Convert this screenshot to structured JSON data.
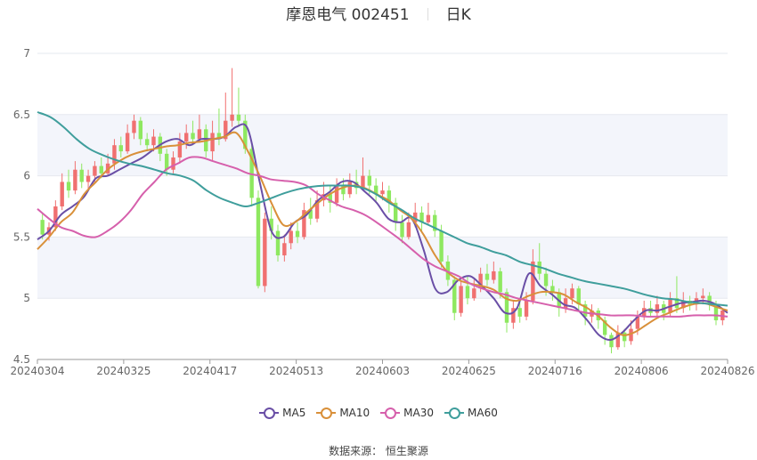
{
  "header": {
    "title": "摩恩电气 002451",
    "period": "日K"
  },
  "source": "数据来源：  恒生聚源",
  "colors": {
    "up": "#f07070",
    "down": "#8ee860",
    "MA5": "#6a4fa6",
    "MA10": "#d9903a",
    "MA30": "#d660ac",
    "MA60": "#3f9e9c",
    "band": "#f3f5fb"
  },
  "chart_data": {
    "type": "candlestick",
    "ylim": [
      4.5,
      7
    ],
    "yticks": [
      "7",
      "6.5",
      "6",
      "5.5",
      "5",
      "4.5"
    ],
    "xticks": [
      "20240304",
      "20240325",
      "20240417",
      "20240513",
      "20240603",
      "20240625",
      "20240716",
      "20240806",
      "20240826"
    ],
    "legend": [
      "MA5",
      "MA10",
      "MA30",
      "MA60"
    ],
    "legend_position": "bottom",
    "candles": [
      [
        5.64,
        5.52,
        5.7,
        5.48
      ],
      [
        5.52,
        5.58,
        5.62,
        5.47
      ],
      [
        5.58,
        5.75,
        5.8,
        5.55
      ],
      [
        5.75,
        5.95,
        6.02,
        5.72
      ],
      [
        5.95,
        5.88,
        6.05,
        5.82
      ],
      [
        5.88,
        6.05,
        6.12,
        5.85
      ],
      [
        6.05,
        5.95,
        6.1,
        5.9
      ],
      [
        5.95,
        6.0,
        6.05,
        5.88
      ],
      [
        6.0,
        6.08,
        6.12,
        5.95
      ],
      [
        6.08,
        6.02,
        6.15,
        5.98
      ],
      [
        6.02,
        6.1,
        6.18,
        6.0
      ],
      [
        6.1,
        6.25,
        6.3,
        6.05
      ],
      [
        6.25,
        6.2,
        6.32,
        6.15
      ],
      [
        6.2,
        6.35,
        6.42,
        6.18
      ],
      [
        6.35,
        6.45,
        6.5,
        6.3
      ],
      [
        6.45,
        6.3,
        6.48,
        6.25
      ],
      [
        6.3,
        6.25,
        6.35,
        6.2
      ],
      [
        6.25,
        6.32,
        6.38,
        6.2
      ],
      [
        6.32,
        6.18,
        6.35,
        6.12
      ],
      [
        6.18,
        6.05,
        6.22,
        6.0
      ],
      [
        6.05,
        6.15,
        6.2,
        6.02
      ],
      [
        6.15,
        6.28,
        6.35,
        6.1
      ],
      [
        6.28,
        6.35,
        6.42,
        6.22
      ],
      [
        6.35,
        6.3,
        6.45,
        6.25
      ],
      [
        6.3,
        6.38,
        6.5,
        6.28
      ],
      [
        6.38,
        6.2,
        6.42,
        6.15
      ],
      [
        6.2,
        6.35,
        6.45,
        6.12
      ],
      [
        6.35,
        6.3,
        6.55,
        6.25
      ],
      [
        6.3,
        6.45,
        6.68,
        6.28
      ],
      [
        6.45,
        6.5,
        6.88,
        6.4
      ],
      [
        6.5,
        6.45,
        6.72,
        6.4
      ],
      [
        6.45,
        6.22,
        6.5,
        6.18
      ],
      [
        6.22,
        5.82,
        6.25,
        5.75
      ],
      [
        5.82,
        5.1,
        5.88,
        5.08
      ],
      [
        5.1,
        5.65,
        5.7,
        5.05
      ],
      [
        5.65,
        5.55,
        5.75,
        5.48
      ],
      [
        5.55,
        5.35,
        5.6,
        5.3
      ],
      [
        5.35,
        5.45,
        5.52,
        5.3
      ],
      [
        5.45,
        5.55,
        5.62,
        5.4
      ],
      [
        5.55,
        5.5,
        5.62,
        5.45
      ],
      [
        5.5,
        5.72,
        5.78,
        5.48
      ],
      [
        5.72,
        5.65,
        5.82,
        5.6
      ],
      [
        5.65,
        5.8,
        5.88,
        5.62
      ],
      [
        5.8,
        5.85,
        5.95,
        5.75
      ],
      [
        5.85,
        5.78,
        5.92,
        5.7
      ],
      [
        5.78,
        5.92,
        5.98,
        5.75
      ],
      [
        5.92,
        5.85,
        5.98,
        5.8
      ],
      [
        5.85,
        5.95,
        6.02,
        5.82
      ],
      [
        5.95,
        5.9,
        6.05,
        5.85
      ],
      [
        5.9,
        6.0,
        6.15,
        5.88
      ],
      [
        6.0,
        5.92,
        6.05,
        5.85
      ],
      [
        5.92,
        5.85,
        5.98,
        5.78
      ],
      [
        5.85,
        5.88,
        5.95,
        5.8
      ],
      [
        5.88,
        5.78,
        5.92,
        5.7
      ],
      [
        5.78,
        5.62,
        5.82,
        5.55
      ],
      [
        5.62,
        5.5,
        5.68,
        5.45
      ],
      [
        5.5,
        5.62,
        5.7,
        5.48
      ],
      [
        5.62,
        5.7,
        5.78,
        5.58
      ],
      [
        5.7,
        5.62,
        5.75,
        5.55
      ],
      [
        5.62,
        5.68,
        5.78,
        5.6
      ],
      [
        5.68,
        5.55,
        5.72,
        5.5
      ],
      [
        5.55,
        5.3,
        5.6,
        5.25
      ],
      [
        5.3,
        5.15,
        5.35,
        5.1
      ],
      [
        5.15,
        4.88,
        5.18,
        4.82
      ],
      [
        4.88,
        5.1,
        5.15,
        4.85
      ],
      [
        5.1,
        5.0,
        5.18,
        4.95
      ],
      [
        5.0,
        5.08,
        5.15,
        4.98
      ],
      [
        5.08,
        5.2,
        5.25,
        5.05
      ],
      [
        5.2,
        5.15,
        5.28,
        5.1
      ],
      [
        5.15,
        5.22,
        5.3,
        5.12
      ],
      [
        5.22,
        5.05,
        5.25,
        5.0
      ],
      [
        5.05,
        4.8,
        5.08,
        4.72
      ],
      [
        4.8,
        4.92,
        4.98,
        4.75
      ],
      [
        4.92,
        4.85,
        4.98,
        4.8
      ],
      [
        4.85,
        4.98,
        5.05,
        4.82
      ],
      [
        4.98,
        5.3,
        5.4,
        4.95
      ],
      [
        5.3,
        5.2,
        5.45,
        5.15
      ],
      [
        5.2,
        5.1,
        5.25,
        5.02
      ],
      [
        5.1,
        5.05,
        5.15,
        4.98
      ],
      [
        5.05,
        4.92,
        5.08,
        4.85
      ],
      [
        4.92,
        5.0,
        5.08,
        4.88
      ],
      [
        5.0,
        5.08,
        5.12,
        4.95
      ],
      [
        5.08,
        4.95,
        5.1,
        4.9
      ],
      [
        4.95,
        4.85,
        4.98,
        4.78
      ],
      [
        4.85,
        4.9,
        4.95,
        4.8
      ],
      [
        4.9,
        4.82,
        4.92,
        4.75
      ],
      [
        4.82,
        4.7,
        4.85,
        4.62
      ],
      [
        4.7,
        4.6,
        4.72,
        4.55
      ],
      [
        4.6,
        4.72,
        4.78,
        4.58
      ],
      [
        4.72,
        4.65,
        4.75,
        4.6
      ],
      [
        4.65,
        4.75,
        4.82,
        4.62
      ],
      [
        4.75,
        4.85,
        4.9,
        4.7
      ],
      [
        4.85,
        4.92,
        4.98,
        4.82
      ],
      [
        4.92,
        4.88,
        4.98,
        4.85
      ],
      [
        4.88,
        4.95,
        5.02,
        4.85
      ],
      [
        4.95,
        4.88,
        4.98,
        4.82
      ],
      [
        4.88,
        5.0,
        5.05,
        4.85
      ],
      [
        5.0,
        4.92,
        5.18,
        4.88
      ],
      [
        4.92,
        4.98,
        5.05,
        4.88
      ],
      [
        4.98,
        4.95,
        5.02,
        4.9
      ],
      [
        4.95,
        5.0,
        5.05,
        4.9
      ],
      [
        5.0,
        5.02,
        5.08,
        4.95
      ],
      [
        5.02,
        4.95,
        5.05,
        4.9
      ],
      [
        4.95,
        4.82,
        4.98,
        4.78
      ],
      [
        4.82,
        4.9,
        4.92,
        4.78
      ]
    ],
    "series": [
      {
        "name": "MA5",
        "values": [
          5.48,
          5.55,
          5.68,
          5.75,
          5.83,
          5.98,
          6.0,
          6.05,
          6.1,
          6.15,
          6.22,
          6.28,
          6.3,
          6.25,
          6.3,
          6.3,
          6.32,
          6.4,
          6.38,
          5.95,
          5.55,
          5.5,
          5.62,
          5.68,
          5.8,
          5.87,
          5.95,
          5.95,
          5.87,
          5.78,
          5.65,
          5.62,
          5.65,
          5.4,
          5.08,
          5.05,
          5.15,
          5.18,
          5.1,
          5.0,
          4.88,
          4.92,
          5.2,
          5.1,
          5.03,
          4.95,
          4.92,
          4.82,
          4.7,
          4.66,
          4.72,
          4.82,
          4.9,
          4.9,
          4.93,
          4.96,
          4.97,
          4.98,
          4.95,
          4.88
        ]
      },
      {
        "name": "MA10",
        "values": [
          5.4,
          5.5,
          5.62,
          5.7,
          5.85,
          5.95,
          6.05,
          6.12,
          6.17,
          6.2,
          6.22,
          6.24,
          6.25,
          6.27,
          6.28,
          6.3,
          6.32,
          6.35,
          6.2,
          6.0,
          5.78,
          5.6,
          5.62,
          5.7,
          5.78,
          5.85,
          5.9,
          5.92,
          5.9,
          5.85,
          5.8,
          5.72,
          5.65,
          5.52,
          5.35,
          5.22,
          5.15,
          5.12,
          5.1,
          5.07,
          5.0,
          4.98,
          5.02,
          5.05,
          5.05,
          5.03,
          4.97,
          4.92,
          4.85,
          4.76,
          4.7,
          4.72,
          4.78,
          4.84,
          4.88,
          4.92,
          4.95,
          4.96,
          4.93,
          4.9
        ]
      },
      {
        "name": "MA30",
        "values": [
          5.73,
          5.65,
          5.58,
          5.55,
          5.51,
          5.5,
          5.55,
          5.62,
          5.72,
          5.85,
          5.95,
          6.05,
          6.1,
          6.15,
          6.15,
          6.12,
          6.09,
          6.06,
          6.02,
          6.0,
          5.97,
          5.96,
          5.95,
          5.92,
          5.85,
          5.8,
          5.75,
          5.72,
          5.68,
          5.62,
          5.55,
          5.48,
          5.4,
          5.32,
          5.26,
          5.22,
          5.18,
          5.12,
          5.08,
          5.05,
          5.03,
          5.0,
          4.98,
          4.96,
          4.94,
          4.92,
          4.9,
          4.88,
          4.87,
          4.86,
          4.86,
          4.86,
          4.85,
          4.85,
          4.85,
          4.85,
          4.86,
          4.86,
          4.86,
          4.85
        ]
      },
      {
        "name": "MA60",
        "values": [
          6.52,
          6.48,
          6.4,
          6.3,
          6.22,
          6.17,
          6.13,
          6.1,
          6.08,
          6.05,
          6.02,
          6.0,
          5.96,
          5.88,
          5.82,
          5.78,
          5.75,
          5.78,
          5.82,
          5.86,
          5.89,
          5.91,
          5.92,
          5.92,
          5.92,
          5.9,
          5.85,
          5.78,
          5.72,
          5.65,
          5.6,
          5.55,
          5.5,
          5.45,
          5.42,
          5.38,
          5.35,
          5.3,
          5.27,
          5.24,
          5.2,
          5.17,
          5.14,
          5.12,
          5.1,
          5.08,
          5.05,
          5.02,
          5.0,
          4.99,
          4.97,
          4.96,
          4.95,
          4.94
        ]
      }
    ]
  }
}
